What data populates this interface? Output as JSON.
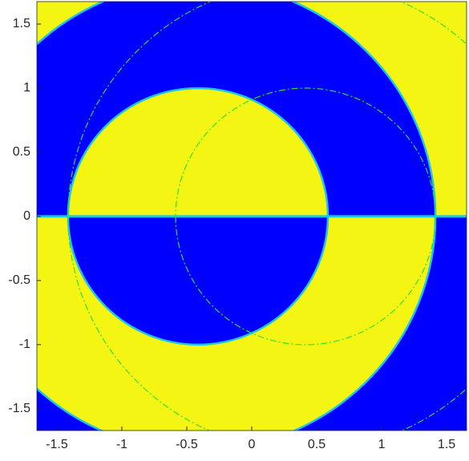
{
  "chart_data": {
    "type": "region",
    "xlim": [
      -1.654,
      1.654
    ],
    "ylim": [
      -1.67,
      1.675
    ],
    "xticks": [
      -1.5,
      -1,
      -0.5,
      0,
      0.5,
      1,
      1.5
    ],
    "yticks": [
      -1.5,
      -1,
      -0.5,
      0,
      0.5,
      1,
      1.5
    ],
    "fill_colors": [
      "#f5f514",
      "#0000ff"
    ],
    "boundary_color": "#19c8e6",
    "dash_color": "#2ee02e",
    "boundaries": [
      {
        "center": [
          -0.414,
          0
        ],
        "radius": 1
      },
      {
        "center": [
          -0.414,
          0
        ],
        "radius": 1.828
      }
    ],
    "dashed": [
      {
        "center": [
          0.414,
          0
        ],
        "radius": 1
      },
      {
        "center": [
          0.414,
          0
        ],
        "radius": 1.828
      }
    ]
  }
}
